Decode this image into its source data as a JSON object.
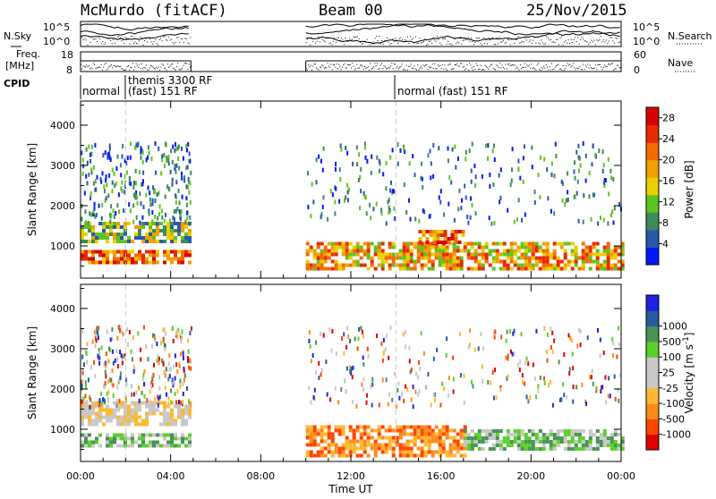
{
  "header": {
    "station": "McMurdo (fitACF)",
    "beam": "Beam 00",
    "date": "25/Nov/2015"
  },
  "side_labels": {
    "nsky": "N.Sky",
    "freq_line1": "Freq.",
    "freq_line2": "[MHz]",
    "cpid": "CPID",
    "nsearch": "N.Search",
    "nave": "Nave",
    "nsky_ticks": [
      "10^5",
      "10^0"
    ],
    "nsearch_ticks": [
      "10^5",
      "10^0"
    ],
    "freq_ticks": [
      "18",
      "8"
    ],
    "nave_ticks": [
      "60",
      "0"
    ]
  },
  "cpid_labels": [
    {
      "text": "normal",
      "row": 2
    },
    {
      "text": "themis 3300 RF",
      "row": 1
    },
    {
      "text": "(fast) 151 RF",
      "row": 2
    },
    {
      "text": "normal (fast) 151 RF",
      "row": 2
    }
  ],
  "x_axis": {
    "label": "Time UT",
    "ticks": [
      "00:00",
      "04:00",
      "08:00",
      "12:00",
      "16:00",
      "20:00",
      "00:00"
    ]
  },
  "colors": {
    "power": [
      "#0018ff",
      "#2a58a8",
      "#3f8a5c",
      "#5fc31e",
      "#e8d000",
      "#f0a000",
      "#f36a00",
      "#e82a00",
      "#d80000"
    ],
    "velocity": [
      "#e00000",
      "#ff4400",
      "#ff8a1c",
      "#ffb830",
      "#c8c8c8",
      "#c8c8c8",
      "#5ad12a",
      "#4a9258",
      "#2a5aa0",
      "#2020e0"
    ]
  },
  "chart_data": [
    {
      "type": "heatmap",
      "title": "",
      "ylabel": "Slant Range [km]",
      "xlabel": "",
      "x_range_hours": [
        0,
        24
      ],
      "ylim": [
        200,
        4600
      ],
      "yticks": [
        "1000",
        "2000",
        "3000",
        "4000"
      ],
      "colorbar": {
        "label": "Power [dB]",
        "ticks": [
          "4",
          "8",
          "12",
          "16",
          "20",
          "24",
          "28"
        ],
        "range": [
          0,
          30
        ]
      },
      "data_gaps_hours": [
        [
          4.9,
          10.0
        ]
      ],
      "features": [
        {
          "t_start": 0.0,
          "t_end": 4.9,
          "range_start_km": 600,
          "range_end_km": 900,
          "level_db": 22
        },
        {
          "t_start": 0.0,
          "t_end": 4.9,
          "range_start_km": 1100,
          "range_end_km": 1600,
          "level_db": 10
        },
        {
          "t_start": 10.0,
          "t_end": 24.0,
          "range_start_km": 400,
          "range_end_km": 1100,
          "level_db": 18
        },
        {
          "t_start": 15.0,
          "t_end": 17.0,
          "range_start_km": 1100,
          "range_end_km": 1400,
          "level_db": 24
        }
      ]
    },
    {
      "type": "heatmap",
      "title": "",
      "ylabel": "Slant Range [km]",
      "xlabel": "Time UT",
      "x_range_hours": [
        0,
        24
      ],
      "ylim": [
        200,
        4600
      ],
      "yticks": [
        "1000",
        "2000",
        "3000",
        "4000"
      ],
      "colorbar": {
        "label": "Velocity [m s^-1]",
        "ticks": [
          "-1000",
          "-500",
          "-100",
          "-25",
          "25",
          "100",
          "500",
          "1000"
        ],
        "range": [
          -1000,
          1000
        ]
      },
      "data_gaps_hours": [
        [
          4.9,
          10.0
        ]
      ],
      "features": [
        {
          "t_start": 0.0,
          "t_end": 4.9,
          "range_start_km": 600,
          "range_end_km": 900,
          "velocity": 100
        },
        {
          "t_start": 0.0,
          "t_end": 4.9,
          "range_start_km": 1100,
          "range_end_km": 1700,
          "velocity": 0
        },
        {
          "t_start": 10.0,
          "t_end": 17.0,
          "range_start_km": 300,
          "range_end_km": 1100,
          "velocity": -100
        },
        {
          "t_start": 17.0,
          "t_end": 24.0,
          "range_start_km": 500,
          "range_end_km": 1000,
          "velocity": 100
        }
      ]
    }
  ]
}
